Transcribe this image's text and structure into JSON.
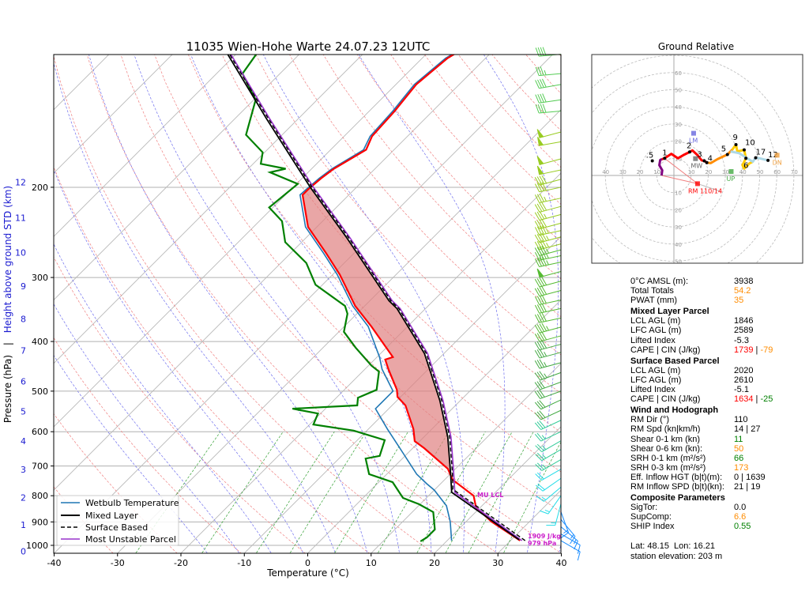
{
  "title": "11035 Wien-Hohe Warte 24.07.23 12UTC",
  "colors": {
    "temperature": "#ff0000",
    "dewpoint": "#008000",
    "wetbulb": "#1f77b4",
    "mixed_layer": "#000000",
    "surface_based": "#000000",
    "most_unstable": "#9933cc",
    "cape_fill": "#e08080"
  },
  "chart_data": {
    "type": "line",
    "title": "11035 Wien-Hohe Warte 24.07.23 12UTC",
    "xlabel": "Temperature (°C)",
    "ylabel": "Pressure (hPa)",
    "ylabel2": "Height above ground STD (km)",
    "ylabel_sep": "|",
    "xlim": [
      -40,
      40
    ],
    "ylim": [
      1036,
      110
    ],
    "xticks": [
      -40,
      -30,
      -20,
      -10,
      0,
      10,
      20,
      30,
      40
    ],
    "yticks": [
      200,
      300,
      400,
      500,
      600,
      700,
      800,
      900,
      1000
    ],
    "km_ticks": [
      0,
      1,
      2,
      3,
      4,
      5,
      6,
      7,
      8,
      9,
      10,
      11,
      12
    ],
    "legend": {
      "placement": "lower-left",
      "entries": [
        "Wetbulb Temperature",
        "Mixed Layer",
        "Surface Based",
        "Most Unstable Parcel"
      ]
    },
    "temperature": [
      [
        979,
        31.5
      ],
      [
        899,
        24.0
      ],
      [
        843,
        19.3
      ],
      [
        800,
        17.1
      ],
      [
        745,
        11.3
      ],
      [
        709,
        8.8
      ],
      [
        646,
        1.8
      ],
      [
        626,
        -0.8
      ],
      [
        593,
        -2.9
      ],
      [
        533,
        -7.9
      ],
      [
        513,
        -10.5
      ],
      [
        497,
        -11.7
      ],
      [
        453,
        -16.3
      ],
      [
        434,
        -18.3
      ],
      [
        429,
        -17.5
      ],
      [
        374,
        -25.7
      ],
      [
        341,
        -31.5
      ],
      [
        296,
        -38.9
      ],
      [
        269,
        -44.4
      ],
      [
        239,
        -51.4
      ],
      [
        207,
        -57.3
      ],
      [
        202,
        -57.3
      ],
      [
        192,
        -57.0
      ],
      [
        184,
        -56.5
      ],
      [
        169,
        -54.4
      ],
      [
        159,
        -55.6
      ],
      [
        142,
        -56.0
      ],
      [
        126,
        -56.8
      ],
      [
        112,
        -56.0
      ],
      [
        110,
        -55.6
      ]
    ],
    "dewpoint": [
      [
        982,
        15.9
      ],
      [
        965,
        16.3
      ],
      [
        931,
        16.3
      ],
      [
        861,
        13.3
      ],
      [
        831,
        9.8
      ],
      [
        808,
        6.3
      ],
      [
        753,
        2.2
      ],
      [
        726,
        -2.8
      ],
      [
        677,
        -5.8
      ],
      [
        669,
        -4.0
      ],
      [
        623,
        -5.7
      ],
      [
        597,
        -12.1
      ],
      [
        581,
        -19.4
      ],
      [
        553,
        -20.4
      ],
      [
        541,
        -25.2
      ],
      [
        533,
        -15.5
      ],
      [
        515,
        -16.6
      ],
      [
        497,
        -14.9
      ],
      [
        458,
        -17.4
      ],
      [
        446,
        -19.5
      ],
      [
        411,
        -24.9
      ],
      [
        383,
        -29.2
      ],
      [
        353,
        -31.5
      ],
      [
        341,
        -33.1
      ],
      [
        310,
        -41.1
      ],
      [
        281,
        -46.0
      ],
      [
        256,
        -52.6
      ],
      [
        233,
        -56.4
      ],
      [
        219,
        -60.6
      ],
      [
        197,
        -59.8
      ],
      [
        187,
        -66.0
      ],
      [
        184,
        -64.1
      ],
      [
        180,
        -68.8
      ],
      [
        171,
        -70.3
      ],
      [
        158,
        -75.7
      ],
      [
        135,
        -79.7
      ],
      [
        120,
        -85.9
      ],
      [
        110,
        -86.8
      ]
    ],
    "wetbulb": [
      [
        979,
        20.7
      ],
      [
        899,
        17.5
      ],
      [
        837,
        14.4
      ],
      [
        780,
        10.0
      ],
      [
        758,
        7.8
      ],
      [
        726,
        4.7
      ],
      [
        660,
        -0.8
      ],
      [
        593,
        -7.0
      ],
      [
        541,
        -12.1
      ],
      [
        500,
        -12.1
      ],
      [
        453,
        -17.3
      ],
      [
        429,
        -19.6
      ],
      [
        374,
        -26.2
      ],
      [
        341,
        -31.9
      ],
      [
        296,
        -39.3
      ],
      [
        269,
        -44.8
      ],
      [
        239,
        -51.8
      ],
      [
        207,
        -57.7
      ],
      [
        202,
        -57.6
      ],
      [
        192,
        -57.3
      ],
      [
        184,
        -56.8
      ],
      [
        169,
        -54.8
      ],
      [
        159,
        -55.9
      ],
      [
        142,
        -56.3
      ],
      [
        126,
        -57.1
      ],
      [
        112,
        -56.3
      ],
      [
        110,
        -55.9
      ]
    ],
    "mixed_layer_parcel": [
      [
        975,
        31.2
      ],
      [
        788,
        13.1
      ],
      [
        719,
        9.7
      ],
      [
        615,
        3.8
      ],
      [
        522,
        -3.2
      ],
      [
        422,
        -13.1
      ],
      [
        345,
        -24.5
      ],
      [
        333,
        -27.0
      ],
      [
        250,
        -43.8
      ],
      [
        200,
        -57.3
      ],
      [
        147,
        -75.0
      ],
      [
        110,
        -91.3
      ]
    ],
    "surface_based_parcel": [
      [
        979,
        32.3
      ],
      [
        777,
        12.8
      ],
      [
        719,
        10.0
      ],
      [
        615,
        4.1
      ],
      [
        522,
        -2.9
      ],
      [
        422,
        -12.8
      ],
      [
        345,
        -24.2
      ],
      [
        333,
        -26.7
      ],
      [
        250,
        -43.5
      ],
      [
        200,
        -57.0
      ],
      [
        147,
        -74.7
      ],
      [
        110,
        -91.0
      ]
    ],
    "most_unstable_parcel": [
      [
        979,
        31.8
      ],
      [
        788,
        13.6
      ],
      [
        719,
        10.2
      ],
      [
        615,
        4.3
      ],
      [
        522,
        -2.7
      ],
      [
        422,
        -12.6
      ],
      [
        345,
        -24.0
      ],
      [
        333,
        -26.5
      ],
      [
        250,
        -43.3
      ],
      [
        200,
        -56.8
      ],
      [
        147,
        -74.5
      ],
      [
        110,
        -90.8
      ]
    ],
    "cape_range_hpa": [
      719,
      200
    ],
    "annotations": {
      "mu_lcl": "MU LCL",
      "mu_lcl_p": 788,
      "mu_cape": "1909 J/kg",
      "mu_p": "979 hPa"
    },
    "wind_barbs": [
      [
        110,
        40,
        265
      ],
      [
        120,
        35,
        265
      ],
      [
        126,
        40,
        260
      ],
      [
        135,
        40,
        262
      ],
      [
        142,
        40,
        265
      ],
      [
        156,
        50,
        255
      ],
      [
        163,
        50,
        260
      ],
      [
        176,
        50,
        255
      ],
      [
        185,
        50,
        258
      ],
      [
        193,
        40,
        255
      ],
      [
        200,
        40,
        258
      ],
      [
        210,
        35,
        258
      ],
      [
        218,
        40,
        255
      ],
      [
        226,
        35,
        255
      ],
      [
        235,
        40,
        255
      ],
      [
        243,
        45,
        258
      ],
      [
        250,
        45,
        255
      ],
      [
        258,
        45,
        255
      ],
      [
        265,
        45,
        255
      ],
      [
        272,
        45,
        258
      ],
      [
        280,
        45,
        258
      ],
      [
        292,
        50,
        255
      ],
      [
        305,
        40,
        255
      ],
      [
        318,
        40,
        255
      ],
      [
        332,
        40,
        258
      ],
      [
        345,
        40,
        258
      ],
      [
        360,
        40,
        258
      ],
      [
        375,
        45,
        255
      ],
      [
        390,
        40,
        255
      ],
      [
        405,
        40,
        255
      ],
      [
        420,
        35,
        255
      ],
      [
        440,
        35,
        255
      ],
      [
        460,
        35,
        250
      ],
      [
        480,
        30,
        250
      ],
      [
        500,
        30,
        250
      ],
      [
        520,
        30,
        245
      ],
      [
        545,
        30,
        245
      ],
      [
        570,
        30,
        245
      ],
      [
        600,
        25,
        245
      ],
      [
        625,
        25,
        240
      ],
      [
        650,
        25,
        240
      ],
      [
        680,
        25,
        240
      ],
      [
        710,
        20,
        240
      ],
      [
        740,
        20,
        235
      ],
      [
        770,
        15,
        230
      ],
      [
        800,
        15,
        215
      ],
      [
        830,
        15,
        195
      ],
      [
        860,
        15,
        160
      ],
      [
        890,
        15,
        140
      ],
      [
        920,
        15,
        130
      ],
      [
        950,
        10,
        120
      ],
      [
        979,
        10,
        120
      ]
    ]
  },
  "hodograph": {
    "title": "Ground Relative",
    "rings": [
      10,
      20,
      30,
      40,
      50,
      60,
      70
    ],
    "x_labels_left": [
      "10",
      "20",
      "30",
      "40"
    ],
    "x_labels_right": [
      "10",
      "20",
      "30",
      "40",
      "50",
      "60",
      "70"
    ],
    "y_labels_up": [
      "10",
      "20",
      "30",
      "40",
      "50",
      "60"
    ],
    "y_labels_down": [
      "10",
      "20",
      "30",
      "40",
      "50"
    ],
    "segments": [
      {
        "color": "#800080",
        "points": [
          [
            -7.2,
            0
          ],
          [
            -6.8,
            3
          ],
          [
            -8.5,
            6
          ],
          [
            -8,
            9
          ],
          [
            -7,
            9.5
          ]
        ]
      },
      {
        "color": "#ff0000",
        "points": [
          [
            -7,
            9.5
          ],
          [
            -5.4,
            10
          ],
          [
            -1.5,
            12.6
          ],
          [
            2.3,
            10
          ],
          [
            5.4,
            11.8
          ],
          [
            9.2,
            13.7
          ],
          [
            10.8,
            14.6
          ],
          [
            13.8,
            11.8
          ],
          [
            16.2,
            8.8
          ],
          [
            17.7,
            8.5
          ],
          [
            19.2,
            7.5
          ]
        ]
      },
      {
        "color": "#ff8c00",
        "points": [
          [
            19.2,
            7.5
          ],
          [
            21.5,
            7.2
          ],
          [
            25.4,
            9.5
          ],
          [
            31.2,
            12.2
          ],
          [
            34,
            15
          ]
        ]
      },
      {
        "color": "#ffcc00",
        "points": [
          [
            34,
            15
          ],
          [
            36.2,
            18
          ],
          [
            37,
            14
          ],
          [
            41,
            14.9
          ],
          [
            42,
            10
          ],
          [
            40,
            6
          ],
          [
            41,
            4
          ],
          [
            44,
            7
          ],
          [
            46,
            8
          ]
        ]
      },
      {
        "color": "#add8e6",
        "points": [
          [
            33,
            14
          ],
          [
            38,
            13
          ],
          [
            46,
            8
          ],
          [
            47.7,
            10.3
          ],
          [
            50,
            10
          ],
          [
            54.9,
            8.8
          ]
        ]
      }
    ],
    "height_labels": [
      [
        ".5",
        -12.6,
        8.5
      ],
      [
        "1",
        -5.4,
        10
      ],
      [
        "2",
        9.2,
        13.7
      ],
      [
        "3",
        17.7,
        8.5
      ],
      [
        "4",
        19.2,
        7.5
      ],
      [
        "5",
        31.2,
        12.2
      ],
      [
        "9",
        36.2,
        18
      ],
      [
        "10",
        41,
        14.9
      ],
      [
        "6",
        42,
        10
      ],
      [
        "17",
        47.7,
        10.3
      ],
      [
        "12",
        54.9,
        8.8
      ]
    ],
    "markers": [
      {
        "label": "LM",
        "u": 11.5,
        "v": 24.6,
        "color": "#6666dd"
      },
      {
        "label": "MW",
        "u": 12.6,
        "v": 9.8,
        "color": "#666666"
      },
      {
        "label": "UP",
        "u": 33.4,
        "v": 2.3,
        "color": "#44aa44"
      },
      {
        "label": "DN",
        "u": 60.2,
        "v": 11.8,
        "color": "#f0a040"
      },
      {
        "label": "RM 110/14",
        "u": 13.8,
        "v": -4.8,
        "color": "#ff0000"
      }
    ],
    "shear_arrow_end": [
      27,
      -9.2
    ]
  },
  "params": [
    {
      "label": "0°C AMSL (m):",
      "parts": [
        {
          "text": "3938",
          "color": "#000000"
        }
      ]
    },
    {
      "label": "Total Totals",
      "parts": [
        {
          "text": "54.2",
          "color": "#ff8c00"
        }
      ]
    },
    {
      "label": "PWAT (mm)",
      "parts": [
        {
          "text": "35",
          "color": "#ff8c00"
        }
      ]
    },
    {
      "header": "Mixed Layer Parcel"
    },
    {
      "label": "LCL AGL (m)",
      "parts": [
        {
          "text": "1846",
          "color": "#000000"
        }
      ]
    },
    {
      "label": "LFC AGL (m)",
      "parts": [
        {
          "text": "2589",
          "color": "#000000"
        }
      ]
    },
    {
      "label": "Lifted Index",
      "parts": [
        {
          "text": "-5.3",
          "color": "#000000"
        }
      ]
    },
    {
      "label": "CAPE | CIN (J/kg)",
      "parts": [
        {
          "text": "1739",
          "color": "#ff0000"
        },
        {
          "text": " | ",
          "color": "#000000"
        },
        {
          "text": "-79",
          "color": "#ff8c00"
        }
      ]
    },
    {
      "header": "Surface Based Parcel"
    },
    {
      "label": "LCL AGL (m)",
      "parts": [
        {
          "text": "2020",
          "color": "#000000"
        }
      ]
    },
    {
      "label": "LFC AGL (m)",
      "parts": [
        {
          "text": "2610",
          "color": "#000000"
        }
      ]
    },
    {
      "label": "Lifted Index",
      "parts": [
        {
          "text": "-5.1",
          "color": "#000000"
        }
      ]
    },
    {
      "label": "CAPE | CIN (J/kg)",
      "parts": [
        {
          "text": "1634",
          "color": "#ff0000"
        },
        {
          "text": " | ",
          "color": "#000000"
        },
        {
          "text": "-25",
          "color": "#008000"
        }
      ]
    },
    {
      "header": "Wind and Hodograph"
    },
    {
      "label": "RM Dir (°)",
      "parts": [
        {
          "text": "110",
          "color": "#000000"
        }
      ]
    },
    {
      "label": "RM Spd (kn|km/h)",
      "parts": [
        {
          "text": "14 | 27",
          "color": "#000000"
        }
      ]
    },
    {
      "label": "Shear 0-1 km (kn)",
      "parts": [
        {
          "text": "11",
          "color": "#008000"
        }
      ]
    },
    {
      "label": "Shear 0-6 km (kn):",
      "parts": [
        {
          "text": "50",
          "color": "#ff8c00"
        }
      ]
    },
    {
      "label": "SRH 0-1 km (m²/s²)",
      "parts": [
        {
          "text": "66",
          "color": "#008000"
        }
      ]
    },
    {
      "label": "SRH 0-3 km (m²/s²)",
      "parts": [
        {
          "text": "173",
          "color": "#ff8c00"
        }
      ]
    },
    {
      "label": "Eff. Inflow HGT (b|t)(m):",
      "parts": [
        {
          "text": "0 | 1639",
          "color": "#000000"
        }
      ]
    },
    {
      "label": "RM Inflow SPD (b|t)(kn):",
      "parts": [
        {
          "text": "21 | 19",
          "color": "#000000"
        }
      ]
    },
    {
      "header": "Composite Parameters"
    },
    {
      "label": "SigTor:",
      "parts": [
        {
          "text": "0.0",
          "color": "#000000"
        }
      ]
    },
    {
      "label": "SupComp:",
      "parts": [
        {
          "text": "6.6",
          "color": "#ff8c00"
        }
      ]
    },
    {
      "label": "SHIP Index",
      "parts": [
        {
          "text": "0.55",
          "color": "#008000"
        }
      ]
    }
  ],
  "footer": {
    "latlon": "Lat: 48.15  Lon: 16.21",
    "elevation": "station elevation: 203 m"
  }
}
